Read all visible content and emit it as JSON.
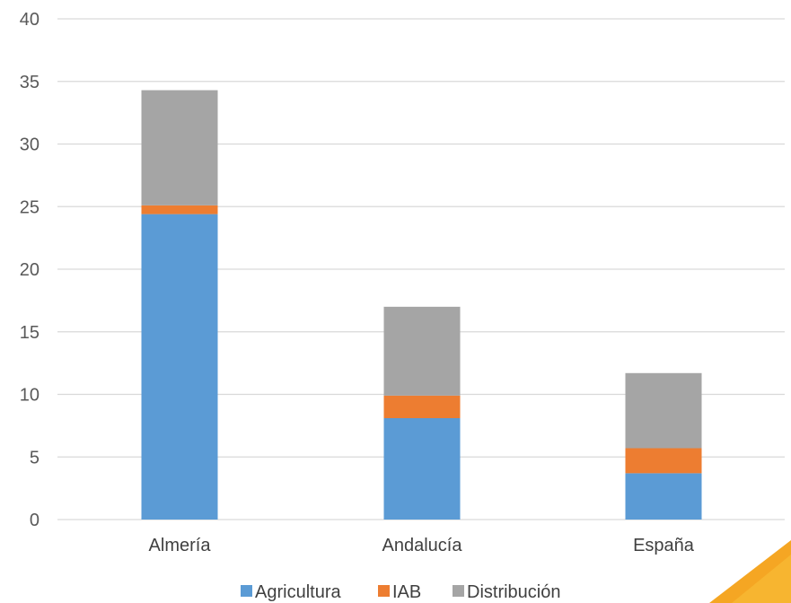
{
  "chart_data": {
    "type": "bar",
    "stacked": true,
    "categories": [
      "Almería",
      "Andalucía",
      "España"
    ],
    "series": [
      {
        "name": "Agricultura",
        "values": [
          24.4,
          8.1,
          3.7
        ],
        "color": "#5B9BD5"
      },
      {
        "name": "IAB",
        "values": [
          0.7,
          1.8,
          2.0
        ],
        "color": "#ED7D31"
      },
      {
        "name": "Distribución",
        "values": [
          9.2,
          7.1,
          6.0
        ],
        "color": "#A5A5A5"
      }
    ],
    "ylim": [
      0,
      40
    ],
    "yticks": [
      0,
      5,
      10,
      15,
      20,
      25,
      30,
      35,
      40
    ],
    "grid": true,
    "legend": "bottom"
  },
  "legend": {
    "labels": [
      "Agricultura",
      "IAB",
      "Distribución"
    ]
  },
  "decoration": {
    "corner_accent_color": "#F5A623"
  }
}
